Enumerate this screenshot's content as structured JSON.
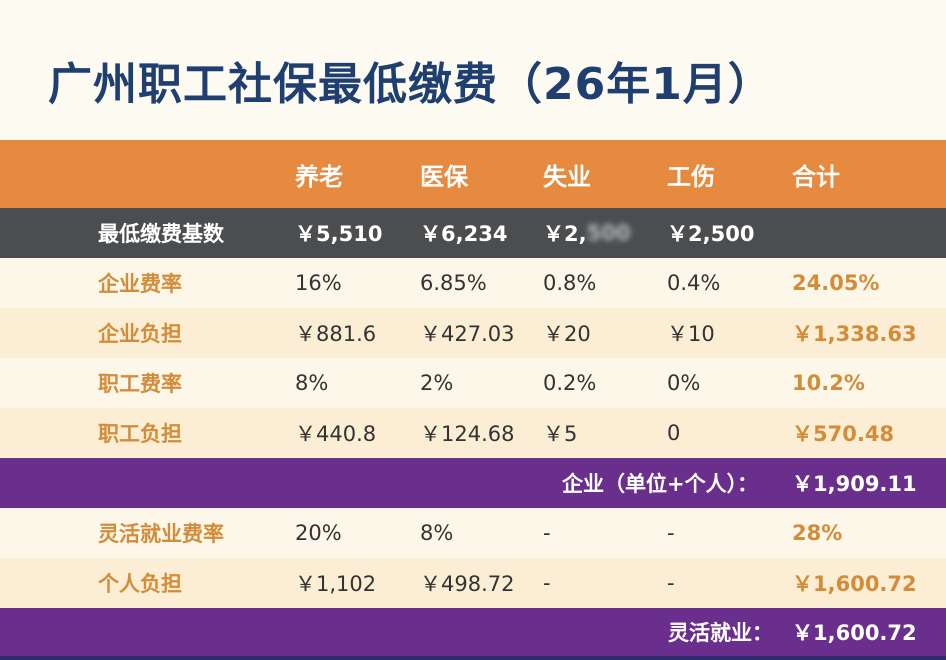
{
  "title": "广州职工社保最低缴费（26年1月）",
  "header": {
    "columns": [
      "养老",
      "医保",
      "失业",
      "工伤",
      "合计"
    ]
  },
  "base_row": {
    "label": "最低缴费基数",
    "values": [
      "￥5,510",
      "￥6,234",
      "￥2,",
      "￥2,500"
    ]
  },
  "rows": [
    {
      "label": "企业费率",
      "values": [
        "16%",
        "6.85%",
        "0.8%",
        "0.4%"
      ],
      "total": "24.05%"
    },
    {
      "label": "企业负担",
      "values": [
        "￥881.6",
        "￥427.03",
        "￥20",
        "￥10"
      ],
      "total": "￥1,338.63"
    },
    {
      "label": "职工费率",
      "values": [
        "8%",
        "2%",
        "0.2%",
        "0%"
      ],
      "total": "10.2%"
    },
    {
      "label": "职工负担",
      "values": [
        "￥440.8",
        "￥124.68",
        "￥5",
        "0"
      ],
      "total": "￥570.48"
    }
  ],
  "summary_company": {
    "label": "企业（单位+个人）：",
    "value": "￥1,909.11"
  },
  "flex_rows": [
    {
      "label": "灵活就业费率",
      "values": [
        "20%",
        "8%",
        "-",
        "-"
      ],
      "total": "28%"
    },
    {
      "label": "个人负担",
      "values": [
        "￥1,102",
        "￥498.72",
        "-",
        "-"
      ],
      "total": "￥1,600.72"
    }
  ],
  "summary_flex": {
    "label": "灵活就业：",
    "value": "￥1,600.72"
  },
  "colors": {
    "title": "#1f3f70",
    "header_bg": "#e58a3f",
    "base_bg": "#4b4d4f",
    "label_orange": "#d38d3a",
    "summary_bg": "#6a2f8c",
    "row_light": "#fdf7e9",
    "row_cream": "#fbeed4"
  }
}
